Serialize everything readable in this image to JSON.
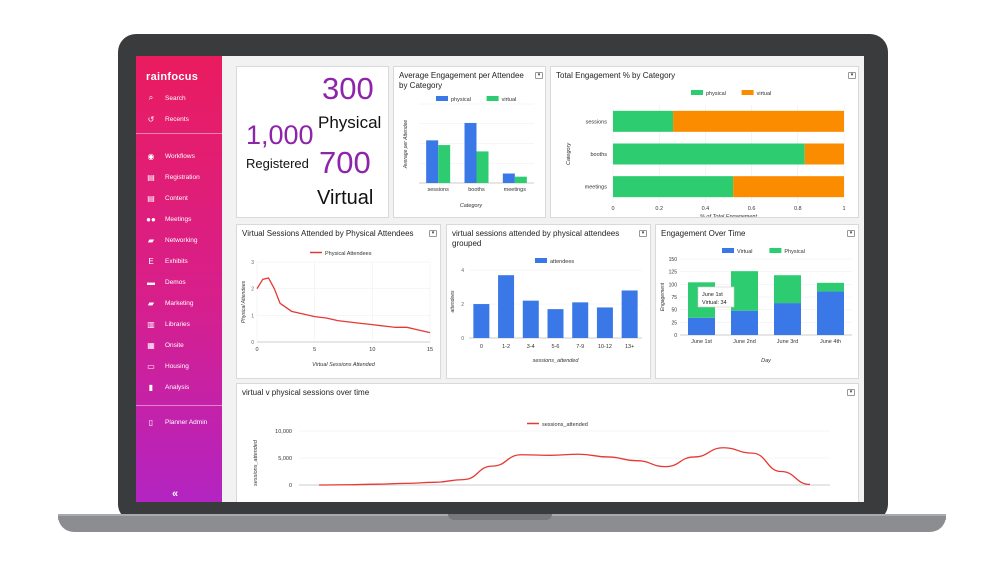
{
  "app": {
    "logo": "rainfocus"
  },
  "sidebar": {
    "top": [
      {
        "label": "Search",
        "icon": "search-icon"
      },
      {
        "label": "Recents",
        "icon": "history-icon"
      }
    ],
    "items": [
      {
        "label": "Workflows",
        "icon": "compass-icon"
      },
      {
        "label": "Registration",
        "icon": "id-card-icon"
      },
      {
        "label": "Content",
        "icon": "content-icon"
      },
      {
        "label": "Meetings",
        "icon": "people-icon"
      },
      {
        "label": "Networking",
        "icon": "chat-icon"
      },
      {
        "label": "Exhibits",
        "icon": "exhibits-icon"
      },
      {
        "label": "Demos",
        "icon": "demo-icon"
      },
      {
        "label": "Marketing",
        "icon": "folder-icon"
      },
      {
        "label": "Libraries",
        "icon": "library-icon"
      },
      {
        "label": "Onsite",
        "icon": "building-icon"
      },
      {
        "label": "Housing",
        "icon": "bed-icon"
      },
      {
        "label": "Analysis",
        "icon": "bar-chart-icon"
      }
    ],
    "bottom": [
      {
        "label": "Planner Admin",
        "icon": "bookmark-icon"
      }
    ],
    "collapse": "«"
  },
  "summary": {
    "physical_value": "300",
    "physical_label": "Physical",
    "registered_value": "1,000",
    "registered_label": "Registered",
    "virtual_value": "700",
    "virtual_label": "Virtual"
  },
  "charts": {
    "avg_engagement": {
      "title": "Average Engagement per Attendee by Category",
      "chart_data": {
        "type": "bar",
        "categories": [
          "sessions",
          "booths",
          "meetings"
        ],
        "series": [
          {
            "name": "physical",
            "color": "#3b78e7",
            "values": [
              2.7,
              3.8,
              0.6
            ]
          },
          {
            "name": "virtual",
            "color": "#2ecc71",
            "values": [
              2.4,
              2.0,
              0.4
            ]
          }
        ],
        "xlabel": "Category",
        "ylabel": "Average per Attendee",
        "ylim": [
          0,
          5
        ]
      }
    },
    "total_engagement": {
      "title": "Total Engagement % by Category",
      "chart_data": {
        "type": "bar",
        "orientation": "horizontal",
        "stacked": true,
        "categories": [
          "sessions",
          "booths",
          "meetings"
        ],
        "series": [
          {
            "name": "physical",
            "color": "#2ecc71",
            "values": [
              0.26,
              0.83,
              0.52
            ]
          },
          {
            "name": "virtual",
            "color": "#fb8c00",
            "values": [
              0.74,
              0.17,
              0.48
            ]
          }
        ],
        "xticks": [
          "0",
          "0.2",
          "0.4",
          "0.6",
          "0.8",
          "1"
        ],
        "xlabel": "% of Total Engagement",
        "ylabel": "Category",
        "xlim": [
          0,
          1
        ]
      }
    },
    "virtual_by_physical": {
      "title": "Virtual Sessions Attended by Physical Attendees",
      "chart_data": {
        "type": "line",
        "series": [
          {
            "name": "Physical Attendees",
            "color": "#e53935"
          }
        ],
        "x": [
          0,
          0.5,
          1,
          1.5,
          2,
          3,
          4,
          5,
          6,
          7,
          8,
          9,
          10,
          11,
          12,
          13,
          14,
          15
        ],
        "y": [
          2.0,
          2.35,
          2.4,
          2.0,
          1.45,
          1.15,
          1.05,
          0.95,
          0.9,
          0.8,
          0.75,
          0.7,
          0.65,
          0.6,
          0.55,
          0.55,
          0.45,
          0.35
        ],
        "xticks": [
          "0",
          "5",
          "10",
          "15"
        ],
        "yticks": [
          "0",
          "1",
          "2",
          "3"
        ],
        "xlim": [
          0,
          15
        ],
        "ylim": [
          0,
          3
        ],
        "xlabel": "Virtual Sessions Attended",
        "ylabel": "Physical Attendees"
      }
    },
    "grouped": {
      "title": "virtual sessions attended by physical attendees grouped",
      "chart_data": {
        "type": "bar",
        "categories": [
          "0",
          "1-2",
          "3-4",
          "5-6",
          "7-9",
          "10-12",
          "13+"
        ],
        "series": [
          {
            "name": "attendees",
            "color": "#3b78e7",
            "values": [
              2.0,
              3.7,
              2.2,
              1.7,
              2.1,
              1.8,
              2.8
            ]
          }
        ],
        "yticks": [
          "0",
          "2",
          "4"
        ],
        "ylim": [
          0,
          4.3
        ],
        "xlabel": "sessions_attended",
        "ylabel": "attendees"
      }
    },
    "engagement_time": {
      "title": "Engagement Over Time",
      "tooltip": {
        "line1": "June 1st",
        "line2": "Virtual: 34"
      },
      "chart_data": {
        "type": "bar",
        "stacked": true,
        "categories": [
          "June 1st",
          "June 2nd",
          "June 3rd",
          "June 4th"
        ],
        "series": [
          {
            "name": "Virtual",
            "color": "#3b78e7",
            "values": [
              34,
              48,
              63,
              86
            ]
          },
          {
            "name": "Physical",
            "color": "#2ecc71",
            "values": [
              70,
              78,
              55,
              17
            ]
          }
        ],
        "yticks": [
          "0",
          "25",
          "50",
          "75",
          "100",
          "125",
          "150"
        ],
        "ylim": [
          0,
          150
        ],
        "xlabel": "Day",
        "ylabel": "Engagement"
      }
    },
    "over_time": {
      "title": "virtual v physical sessions over time",
      "chart_data": {
        "type": "line",
        "series": [
          {
            "name": "sessions_attended",
            "color": "#e53935"
          }
        ],
        "x": [
          0,
          1,
          2,
          3,
          4,
          5,
          6,
          7,
          8,
          9,
          10,
          11,
          12,
          13,
          14,
          15,
          16,
          17
        ],
        "y": [
          0,
          50,
          150,
          300,
          500,
          1000,
          3500,
          5600,
          5500,
          5700,
          5200,
          4500,
          3400,
          5200,
          6900,
          5900,
          2500,
          100
        ],
        "yticks": [
          "0",
          "5,000",
          "10,000"
        ],
        "ylim": [
          0,
          10000
        ],
        "ylabel": "sessions_attended"
      }
    }
  }
}
